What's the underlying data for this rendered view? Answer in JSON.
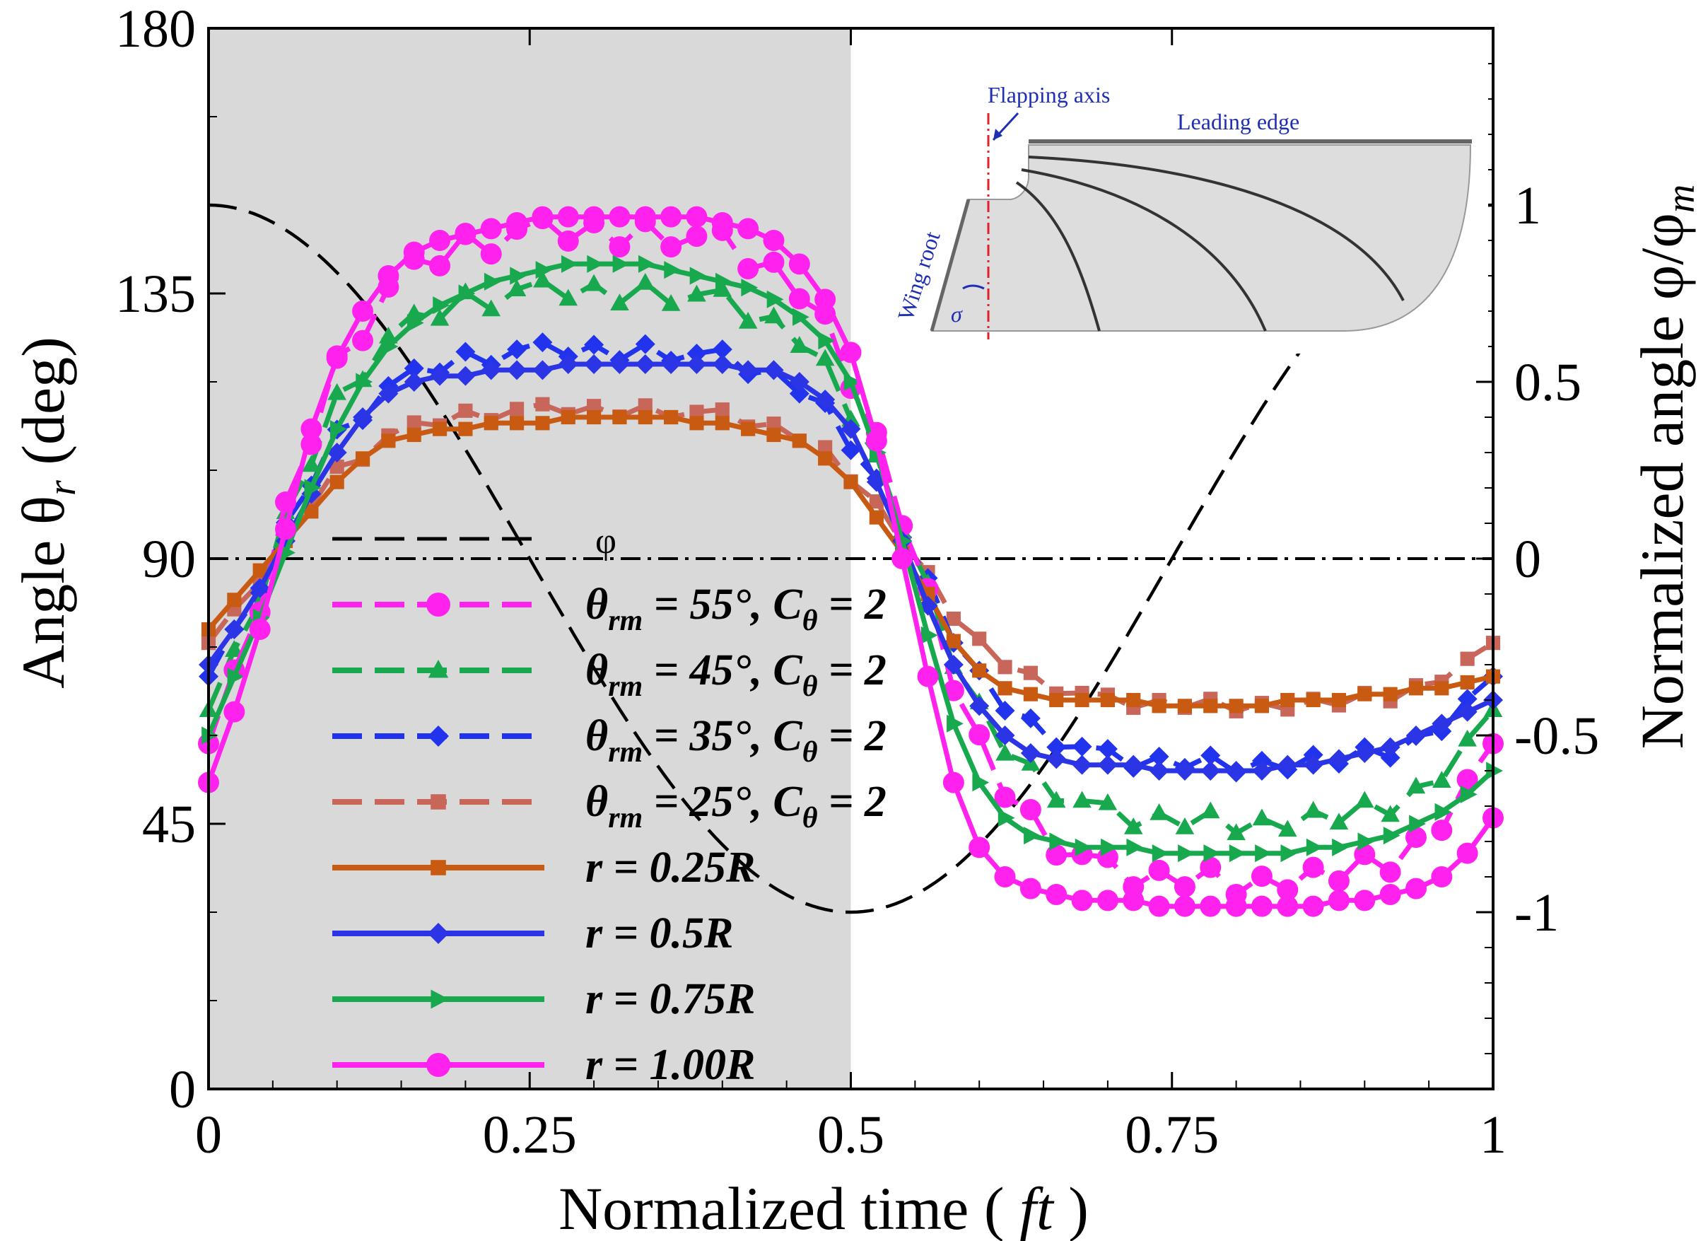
{
  "chart_data": {
    "type": "line",
    "title": "",
    "xlabel_main": "Normalized time (",
    "xlabel_var": "ft",
    "xlabel_close": ")",
    "ylabel_left_pre": "Angle  θ",
    "ylabel_left_sub": "r",
    "ylabel_left_post": " (deg)",
    "ylabel_right_pre": "Normalized angle φ/φ",
    "ylabel_right_sub": "m",
    "xlim": [
      0,
      1
    ],
    "ylim_left": [
      0,
      180
    ],
    "ylim_right": [
      -1.5,
      1.5
    ],
    "x_ticks": [
      0,
      0.25,
      0.5,
      0.75,
      1
    ],
    "x_tick_labels": [
      "0",
      "0.25",
      "0.5",
      "0.75",
      "1"
    ],
    "y_left_ticks": [
      0,
      45,
      90,
      135,
      180
    ],
    "y_left_tick_labels": [
      "0",
      "45",
      "90",
      "135",
      "180"
    ],
    "y_right_ticks": [
      -1,
      -0.5,
      0,
      0.5,
      1
    ],
    "y_right_tick_labels": [
      "-1",
      "-0.5",
      "0",
      "0.5",
      "1"
    ],
    "shaded_region": [
      0,
      0.5
    ],
    "reference_line": {
      "y": 90,
      "style": "dash-dot"
    },
    "phi_curve": {
      "name": "φ",
      "expression": "cos(2*pi*t)",
      "axis": "right",
      "color": "#000000"
    },
    "series": [
      {
        "name": "θrm = 55°, Cθ = 2",
        "label_theta": "θ",
        "label_rm": "rm",
        "label_mid": " = 55°, C",
        "label_c": "θ",
        "label_end": " = 2",
        "color": "#ff22ee",
        "marker": "circle",
        "dash": true,
        "model": {
          "rise": 55,
          "c": 2
        }
      },
      {
        "name": "θrm = 45°, Cθ = 2",
        "label_theta": "θ",
        "label_rm": "rm",
        "label_mid": " = 45°, C",
        "label_c": "θ",
        "label_end": " = 2",
        "color": "#18a84e",
        "marker": "triangle",
        "dash": true,
        "model": {
          "rise": 45,
          "c": 2
        }
      },
      {
        "name": "θrm = 35°, Cθ = 2",
        "label_theta": "θ",
        "label_rm": "rm",
        "label_mid": " = 35°, C",
        "label_c": "θ",
        "label_end": " = 2",
        "color": "#2233ee",
        "marker": "diamond",
        "dash": true,
        "model": {
          "rise": 35,
          "c": 2
        }
      },
      {
        "name": "θrm = 25°, Cθ = 2",
        "label_theta": "θ",
        "label_rm": "rm",
        "label_mid": " = 25°, C",
        "label_c": "θ",
        "label_end": " = 2",
        "color": "#c8665a",
        "marker": "square",
        "dash": true,
        "model": {
          "rise": 25,
          "c": 2
        }
      },
      {
        "name": "r = 0.25R",
        "label": "r = 0.25R",
        "color": "#c85a12",
        "marker": "square",
        "dash": false,
        "x": [
          0,
          0.02,
          0.04,
          0.06,
          0.08,
          0.1,
          0.12,
          0.14,
          0.16,
          0.18,
          0.2,
          0.22,
          0.24,
          0.26,
          0.28,
          0.3,
          0.32,
          0.34,
          0.36,
          0.38,
          0.4,
          0.42,
          0.44,
          0.46,
          0.48,
          0.5,
          0.52,
          0.54,
          0.56,
          0.58,
          0.6,
          0.62,
          0.64,
          0.66,
          0.68,
          0.7,
          0.72,
          0.74,
          0.76,
          0.78,
          0.8,
          0.82,
          0.84,
          0.86,
          0.88,
          0.9,
          0.92,
          0.94,
          0.96,
          0.98,
          1
        ],
        "y": [
          78,
          83,
          88,
          93,
          98,
          103,
          107,
          110,
          111,
          112,
          112,
          113,
          113,
          113,
          114,
          114,
          114,
          114,
          114,
          113,
          113,
          112,
          111,
          110,
          107,
          103,
          97,
          91,
          84,
          76,
          71,
          68,
          67,
          66,
          66,
          66,
          66,
          65,
          65,
          65,
          65,
          65,
          66,
          66,
          66,
          67,
          67,
          68,
          68,
          69,
          70
        ]
      },
      {
        "name": "r = 0.5R",
        "label": "r = 0.5R",
        "color": "#2b35e6",
        "marker": "diamond",
        "dash": false,
        "x": [
          0,
          0.02,
          0.04,
          0.06,
          0.08,
          0.1,
          0.12,
          0.14,
          0.16,
          0.18,
          0.2,
          0.22,
          0.24,
          0.26,
          0.28,
          0.3,
          0.32,
          0.34,
          0.36,
          0.38,
          0.4,
          0.42,
          0.44,
          0.46,
          0.48,
          0.5,
          0.52,
          0.54,
          0.56,
          0.58,
          0.6,
          0.62,
          0.64,
          0.66,
          0.68,
          0.7,
          0.72,
          0.74,
          0.76,
          0.78,
          0.8,
          0.82,
          0.84,
          0.86,
          0.88,
          0.9,
          0.92,
          0.94,
          0.96,
          0.98,
          1
        ],
        "y": [
          72,
          78,
          85,
          93,
          101,
          108,
          114,
          118,
          120,
          121,
          121,
          122,
          122,
          122,
          123,
          123,
          123,
          123,
          123,
          123,
          123,
          122,
          122,
          120,
          117,
          112,
          103,
          93,
          82,
          72,
          65,
          60,
          57,
          56,
          55,
          55,
          55,
          54,
          54,
          54,
          54,
          54,
          55,
          55,
          56,
          57,
          58,
          60,
          62,
          64,
          66
        ]
      },
      {
        "name": "r = 0.75R",
        "label": "r = 0.75R",
        "color": "#18a84e",
        "marker": "rightTriangle",
        "dash": false,
        "x": [
          0,
          0.02,
          0.04,
          0.06,
          0.08,
          0.1,
          0.12,
          0.14,
          0.16,
          0.18,
          0.2,
          0.22,
          0.24,
          0.26,
          0.28,
          0.3,
          0.32,
          0.34,
          0.36,
          0.38,
          0.4,
          0.42,
          0.44,
          0.46,
          0.48,
          0.5,
          0.52,
          0.54,
          0.56,
          0.58,
          0.6,
          0.62,
          0.64,
          0.66,
          0.68,
          0.7,
          0.72,
          0.74,
          0.76,
          0.78,
          0.8,
          0.82,
          0.84,
          0.86,
          0.88,
          0.9,
          0.92,
          0.94,
          0.96,
          0.98,
          1
        ],
        "y": [
          60,
          70,
          80,
          91,
          102,
          112,
          120,
          126,
          130,
          133,
          135,
          137,
          138,
          139,
          140,
          140,
          140,
          140,
          139,
          138,
          137,
          136,
          134,
          131,
          127,
          120,
          108,
          93,
          77,
          62,
          52,
          46,
          43,
          42,
          41,
          41,
          41,
          40,
          40,
          40,
          40,
          40,
          40,
          41,
          41,
          42,
          43,
          45,
          47,
          50,
          54
        ]
      },
      {
        "name": "r = 1.00R",
        "label": "r = 1.00R",
        "color": "#ff22ee",
        "marker": "circle",
        "dash": false,
        "x": [
          0,
          0.02,
          0.04,
          0.06,
          0.08,
          0.1,
          0.12,
          0.14,
          0.16,
          0.18,
          0.2,
          0.22,
          0.24,
          0.26,
          0.28,
          0.3,
          0.32,
          0.34,
          0.36,
          0.38,
          0.4,
          0.42,
          0.44,
          0.46,
          0.48,
          0.5,
          0.52,
          0.54,
          0.56,
          0.58,
          0.6,
          0.62,
          0.64,
          0.66,
          0.68,
          0.7,
          0.72,
          0.74,
          0.76,
          0.78,
          0.8,
          0.82,
          0.84,
          0.86,
          0.88,
          0.9,
          0.92,
          0.94,
          0.96,
          0.98,
          1
        ],
        "y": [
          52,
          64,
          78,
          95,
          112,
          124,
          132,
          138,
          142,
          144,
          145,
          146,
          147,
          148,
          148,
          148,
          148,
          148,
          148,
          148,
          147,
          146,
          144,
          140,
          134,
          125,
          110,
          90,
          70,
          52,
          41,
          36,
          34,
          33,
          32,
          32,
          32,
          31,
          31,
          31,
          31,
          31,
          31,
          31,
          32,
          32,
          33,
          34,
          36,
          40,
          46
        ]
      }
    ],
    "legend": {
      "position": "center-left",
      "phi_label": "φ"
    },
    "inset": {
      "label_flapping_axis": "Flapping axis",
      "label_leading_edge": "Leading edge",
      "label_wing_root": "Wing root",
      "label_sigma": "σ"
    }
  }
}
